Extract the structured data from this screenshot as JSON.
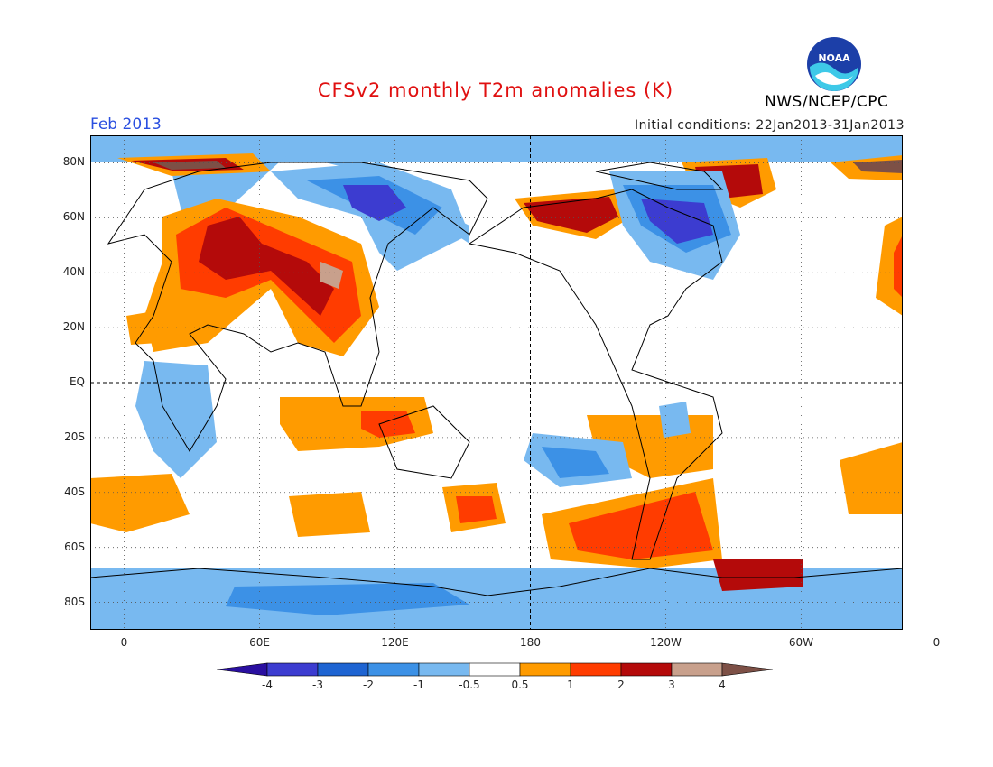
{
  "header": {
    "title": "CFSv2 monthly T2m anomalies (K)",
    "period": "Feb 2013",
    "initial_conditions": "Initial conditions: 22Jan2013-31Jan2013",
    "org": "NWS/NCEP/CPC",
    "logo_text": "NOAA"
  },
  "map": {
    "lat_labels": [
      "80N",
      "60N",
      "40N",
      "20N",
      "EQ",
      "20S",
      "40S",
      "60S",
      "80S"
    ],
    "lon_labels": [
      "0",
      "60E",
      "120E",
      "180",
      "120W",
      "60W",
      "0"
    ],
    "colors": {
      "lt_m4": "#2a0fa0",
      "m4_m3": "#3c3cd0",
      "m3_m2": "#1e64d2",
      "m2_m1": "#3c91e6",
      "m1_m05": "#78b9f0",
      "neutral": "#ffffff",
      "p05_p1": "#ff9b00",
      "p1_p2": "#ff3c00",
      "p2_p3": "#b40a0a",
      "p3_p4": "#c8a08c",
      "gt_p4": "#7d5046"
    }
  },
  "colorbar": {
    "labels": [
      "-4",
      "-3",
      "-2",
      "-1",
      "-0.5",
      "0.5",
      "1",
      "2",
      "3",
      "4"
    ]
  }
}
